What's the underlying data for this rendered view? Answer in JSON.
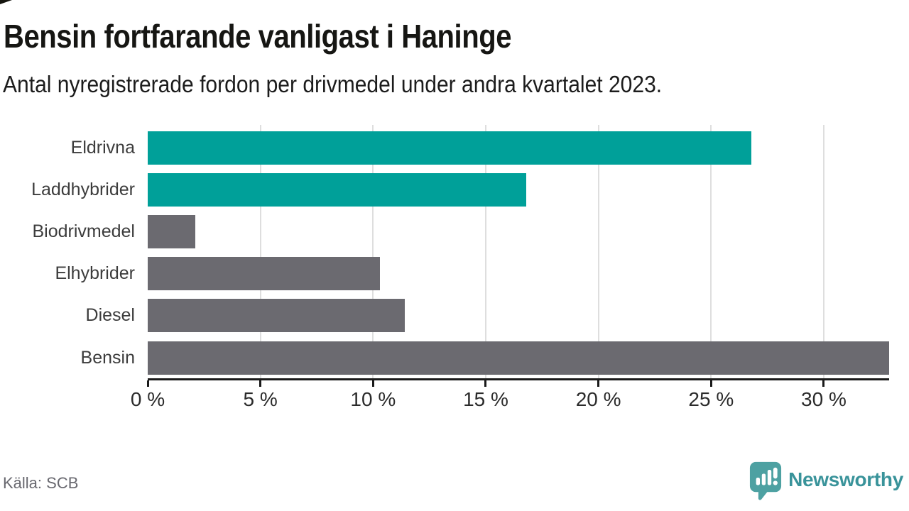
{
  "title": "Bensin fortfarande vanligast i Haninge",
  "subtitle": "Antal nyregistrerade fordon per drivmedel under andra kvartalet 2023.",
  "source": "Källa: SCB",
  "brand": {
    "name": "Newsworthy",
    "icon": "newsworthy-chart-bubble-icon",
    "icon_color": "#4da1a2",
    "text_color": "#39939a"
  },
  "colors": {
    "highlight_bar": "#00a099",
    "default_bar": "#6b6a70",
    "gridline": "#dedede",
    "axis": "#1a1a1a"
  },
  "chart_data": {
    "type": "bar",
    "orientation": "horizontal",
    "title": "Bensin fortfarande vanligast i Haninge",
    "subtitle": "Antal nyregistrerade fordon per drivmedel under andra kvartalet 2023.",
    "categories": [
      "Eldrivna",
      "Laddhybrider",
      "Biodrivmedel",
      "Elhybrider",
      "Diesel",
      "Bensin"
    ],
    "values": [
      26.8,
      16.8,
      2.1,
      10.3,
      11.4,
      32.9
    ],
    "highlighted": [
      true,
      true,
      false,
      false,
      false,
      false
    ],
    "unit": "%",
    "xlim": [
      0,
      32.9
    ],
    "x_tick_values": [
      0,
      5,
      10,
      15,
      20,
      25,
      30
    ],
    "x_tick_labels": [
      "0 %",
      "5 %",
      "10 %",
      "15 %",
      "20 %",
      "25 %",
      "30 %"
    ],
    "grid": "vertical",
    "legend": "none"
  }
}
